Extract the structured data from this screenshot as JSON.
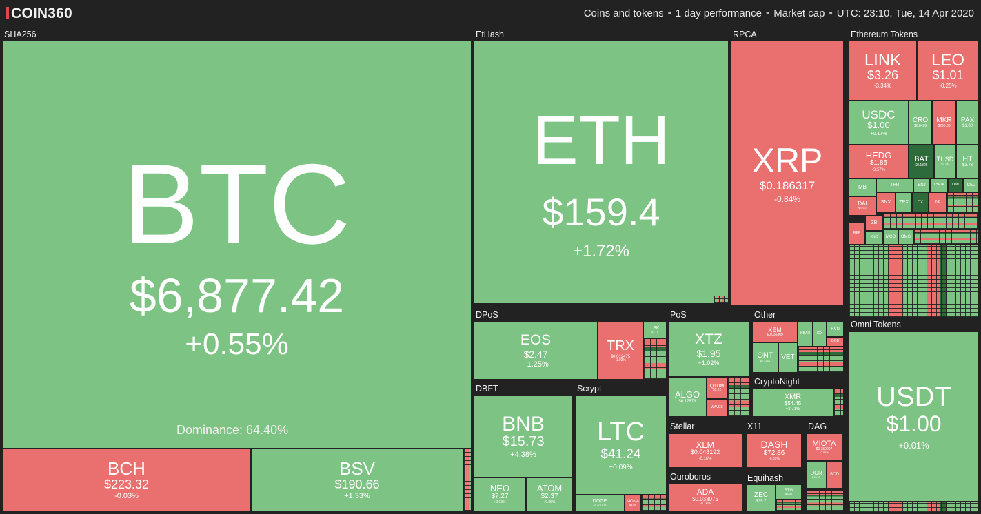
{
  "header": {
    "logo": "COIN360",
    "info": [
      "Coins and tokens",
      "1 day performance",
      "Market cap",
      "UTC: 23:10, Tue, 14 Apr 2020"
    ]
  },
  "groups": {
    "sha256": "SHA256",
    "ethash": "EtHash",
    "rpca": "RPCA",
    "eth_tokens": "Ethereum Tokens",
    "dpos": "DPoS",
    "pos": "PoS",
    "other": "Other",
    "omni": "Omni Tokens",
    "dbft": "DBFT",
    "scrypt": "Scrypt",
    "cryptonight": "CryptoNight",
    "stellar": "Stellar",
    "x11": "X11",
    "dag": "DAG",
    "ouroboros": "Ouroboros",
    "equihash": "Equihash"
  },
  "dominance": "Dominance: 64.40%",
  "coins": {
    "btc": {
      "sym": "BTC",
      "price": "$6,877.42",
      "chg": "+0.55%"
    },
    "bch": {
      "sym": "BCH",
      "price": "$223.32",
      "chg": "-0.03%"
    },
    "bsv": {
      "sym": "BSV",
      "price": "$190.66",
      "chg": "+1.33%"
    },
    "eth": {
      "sym": "ETH",
      "price": "$159.4",
      "chg": "+1.72%"
    },
    "xrp": {
      "sym": "XRP",
      "price": "$0.186317",
      "chg": "-0.84%"
    },
    "link": {
      "sym": "LINK",
      "price": "$3.26",
      "chg": "-3.34%"
    },
    "leo": {
      "sym": "LEO",
      "price": "$1.01",
      "chg": "-0.25%"
    },
    "usdc": {
      "sym": "USDC",
      "price": "$1.00",
      "chg": "+0.17%"
    },
    "cro": {
      "sym": "CRO",
      "price": "$0.0429",
      "chg": ""
    },
    "mkr": {
      "sym": "MKR",
      "price": "$290.30",
      "chg": ""
    },
    "pax": {
      "sym": "PAX",
      "price": "$1.00",
      "chg": ""
    },
    "hedg": {
      "sym": "HEDG",
      "price": "$1.85",
      "chg": "-3.57%"
    },
    "bat": {
      "sym": "BAT",
      "price": "$0.1826",
      "chg": ""
    },
    "tusd": {
      "sym": "TUSD",
      "price": "$1.00",
      "chg": ""
    },
    "ht": {
      "sym": "HT",
      "price": "$3.73",
      "chg": ""
    },
    "mb": {
      "sym": "MB"
    },
    "thr": {
      "sym": "THR"
    },
    "enj": {
      "sym": "ENJ"
    },
    "theta": {
      "sym": "THETA"
    },
    "omi": {
      "sym": "OMI"
    },
    "cel": {
      "sym": "CEL"
    },
    "dai": {
      "sym": "DAI",
      "price": "$1.01"
    },
    "snx": {
      "sym": "SNX"
    },
    "zrx": {
      "sym": "ZRX"
    },
    "dx": {
      "sym": "DX"
    },
    "inb": {
      "sym": "INB"
    },
    "zb": {
      "sym": "ZB"
    },
    "rep": {
      "sym": "REP"
    },
    "knc": {
      "sym": "KNC"
    },
    "mco": {
      "sym": "MCO"
    },
    "omg": {
      "sym": "OMG"
    },
    "eos": {
      "sym": "EOS",
      "price": "$2.47",
      "chg": "+1.25%"
    },
    "trx": {
      "sym": "TRX",
      "price": "$0.012475",
      "chg": "-1.03%"
    },
    "lsk": {
      "sym": "LSK",
      "price": "$1.16"
    },
    "xtz": {
      "sym": "XTZ",
      "price": "$1.95",
      "chg": "+1.02%"
    },
    "algo": {
      "sym": "ALGO",
      "price": "$0.17873",
      "chg": ""
    },
    "qtum": {
      "sym": "QTUM",
      "price": "$1.22"
    },
    "waves": {
      "sym": "WAVES"
    },
    "xem": {
      "sym": "XEM",
      "price": "$0.036809",
      "chg": ""
    },
    "ont": {
      "sym": "ONT",
      "price": "$0.4853"
    },
    "vet": {
      "sym": "VET"
    },
    "rvn": {
      "sym": "RVN"
    },
    "hbar": {
      "sym": "HBAR"
    },
    "icx": {
      "sym": "ICX"
    },
    "dgb": {
      "sym": "DGB"
    },
    "usdt": {
      "sym": "USDT",
      "price": "$1.00",
      "chg": "+0.01%"
    },
    "bnb": {
      "sym": "BNB",
      "price": "$15.73",
      "chg": "+4.38%"
    },
    "neo": {
      "sym": "NEO",
      "price": "$7.27",
      "chg": "+0.03%"
    },
    "atom": {
      "sym": "ATOM",
      "price": "$2.37",
      "chg": "+0.05%"
    },
    "ltc": {
      "sym": "LTC",
      "price": "$41.24",
      "chg": "+0.09%"
    },
    "doge": {
      "sym": "DOGE",
      "price": "$0.001975"
    },
    "mona": {
      "sym": "MONA",
      "price": "$1.09"
    },
    "xmr": {
      "sym": "XMR",
      "price": "$54.45",
      "chg": "+2.71%"
    },
    "xlm": {
      "sym": "XLM",
      "price": "$0.048192",
      "chg": "-0.16%"
    },
    "dash": {
      "sym": "DASH",
      "price": "$72.86",
      "chg": "-0.39%"
    },
    "miota": {
      "sym": "MIOTA",
      "price": "$0.159007",
      "chg": "-0.86%"
    },
    "dcr": {
      "sym": "DCR",
      "price": "$15.01"
    },
    "bcd": {
      "sym": "BCD"
    },
    "ada": {
      "sym": "ADA",
      "price": "$0.033075",
      "chg": "-0.14%"
    },
    "zec": {
      "sym": "ZEC",
      "price": "$35.7"
    },
    "btg": {
      "sym": "BTG",
      "price": "$6.35"
    }
  },
  "colors": {
    "up": "#7dc383",
    "down": "#ea6f6f",
    "background": "#222222",
    "logo_accent": "#e04848"
  }
}
